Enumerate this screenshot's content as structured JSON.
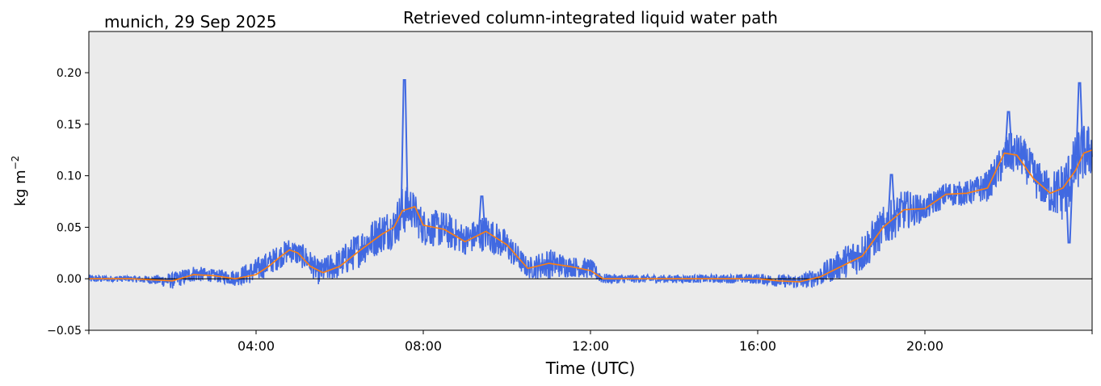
{
  "header": {
    "location_date": "munich, 29 Sep 2025",
    "title": "Retrieved column-integrated liquid water path"
  },
  "chart_data": {
    "type": "line",
    "title": "Retrieved column-integrated liquid water path",
    "xlabel": "Time (UTC)",
    "ylabel": "kg m",
    "ylabel_superscript": "−2",
    "xlim_hours": [
      0,
      24
    ],
    "ylim": [
      -0.05,
      0.24
    ],
    "x_ticks": [
      {
        "hours": 4,
        "label": "04:00"
      },
      {
        "hours": 8,
        "label": "08:00"
      },
      {
        "hours": 12,
        "label": "12:00"
      },
      {
        "hours": 16,
        "label": "16:00"
      },
      {
        "hours": 20,
        "label": "20:00"
      }
    ],
    "y_ticks": [
      {
        "value": -0.05,
        "label": "−0.05"
      },
      {
        "value": 0.0,
        "label": "0.00"
      },
      {
        "value": 0.05,
        "label": "0.05"
      },
      {
        "value": 0.1,
        "label": "0.10"
      },
      {
        "value": 0.15,
        "label": "0.15"
      },
      {
        "value": 0.2,
        "label": "0.20"
      }
    ],
    "zero_line": 0.0,
    "background_color": "#ebebeb",
    "series": [
      {
        "style": "scatter-band",
        "color": "#4169e1",
        "note_spread": "raw retrievals",
        "x_hours": [
          0,
          0.5,
          1.0,
          1.5,
          2.0,
          2.5,
          3.0,
          3.5,
          4.0,
          4.5,
          4.8,
          5.2,
          5.5,
          6.0,
          6.5,
          7.0,
          7.3,
          7.5,
          7.7,
          8.0,
          8.5,
          9.0,
          9.5,
          10.0,
          10.5,
          11.0,
          11.5,
          12.0,
          12.3,
          13.0,
          14.0,
          15.0,
          16.0,
          16.5,
          17.0,
          17.5,
          18.0,
          18.5,
          19.0,
          19.5,
          20.0,
          20.5,
          21.0,
          21.5,
          22.0,
          22.3,
          22.7,
          23.0,
          23.3,
          23.5,
          23.7,
          24.0
        ],
        "y_center": [
          0.0,
          0.0,
          0.0,
          -0.001,
          -0.002,
          0.005,
          0.003,
          0.001,
          0.008,
          0.02,
          0.028,
          0.02,
          0.006,
          0.015,
          0.03,
          0.045,
          0.05,
          0.065,
          0.07,
          0.05,
          0.048,
          0.038,
          0.045,
          0.032,
          0.01,
          0.015,
          0.012,
          0.01,
          0.0,
          0.0,
          0.0,
          0.0,
          0.0,
          -0.002,
          -0.003,
          0.003,
          0.015,
          0.025,
          0.05,
          0.067,
          0.068,
          0.082,
          0.083,
          0.09,
          0.122,
          0.12,
          0.095,
          0.083,
          0.085,
          0.1,
          0.12,
          0.125
        ],
        "y_spread": [
          0.004,
          0.003,
          0.003,
          0.004,
          0.008,
          0.008,
          0.006,
          0.008,
          0.012,
          0.012,
          0.012,
          0.012,
          0.012,
          0.015,
          0.018,
          0.02,
          0.02,
          0.025,
          0.02,
          0.018,
          0.018,
          0.015,
          0.018,
          0.015,
          0.01,
          0.015,
          0.01,
          0.01,
          0.005,
          0.004,
          0.004,
          0.004,
          0.005,
          0.006,
          0.007,
          0.01,
          0.015,
          0.02,
          0.02,
          0.02,
          0.012,
          0.012,
          0.012,
          0.015,
          0.02,
          0.02,
          0.02,
          0.02,
          0.03,
          0.03,
          0.03,
          0.025
        ],
        "spikes": [
          {
            "x_hours": 7.55,
            "y": 0.193
          },
          {
            "x_hours": 9.4,
            "y": 0.08
          },
          {
            "x_hours": 19.2,
            "y": 0.101
          },
          {
            "x_hours": 22.0,
            "y": 0.162
          },
          {
            "x_hours": 23.7,
            "y": 0.19
          },
          {
            "x_hours": 23.45,
            "y": 0.035
          }
        ]
      },
      {
        "style": "line",
        "color": "#ff7f0e",
        "note_spread": "smoothed",
        "x_hours": [
          0,
          0.5,
          1.0,
          1.5,
          2.0,
          2.5,
          3.0,
          3.5,
          4.0,
          4.3,
          4.6,
          4.8,
          5.0,
          5.3,
          5.6,
          6.0,
          6.5,
          7.0,
          7.3,
          7.5,
          7.8,
          8.0,
          8.5,
          9.0,
          9.5,
          10.0,
          10.5,
          11.0,
          11.5,
          12.0,
          12.3,
          13.0,
          14.0,
          15.0,
          16.0,
          16.5,
          17.0,
          17.5,
          18.0,
          18.5,
          19.0,
          19.5,
          20.0,
          20.5,
          21.0,
          21.5,
          21.9,
          22.2,
          22.6,
          23.0,
          23.3,
          23.6,
          23.8,
          24.0
        ],
        "y": [
          0.0,
          0.0,
          0.0,
          -0.001,
          -0.002,
          0.004,
          0.003,
          0.0,
          0.004,
          0.012,
          0.022,
          0.028,
          0.025,
          0.012,
          0.006,
          0.012,
          0.028,
          0.043,
          0.05,
          0.066,
          0.07,
          0.052,
          0.048,
          0.036,
          0.046,
          0.033,
          0.01,
          0.015,
          0.012,
          0.008,
          0.0,
          0.0,
          0.0,
          0.0,
          0.0,
          -0.002,
          -0.003,
          0.002,
          0.012,
          0.022,
          0.05,
          0.067,
          0.068,
          0.082,
          0.083,
          0.088,
          0.122,
          0.12,
          0.097,
          0.083,
          0.088,
          0.105,
          0.122,
          0.125
        ]
      }
    ]
  }
}
